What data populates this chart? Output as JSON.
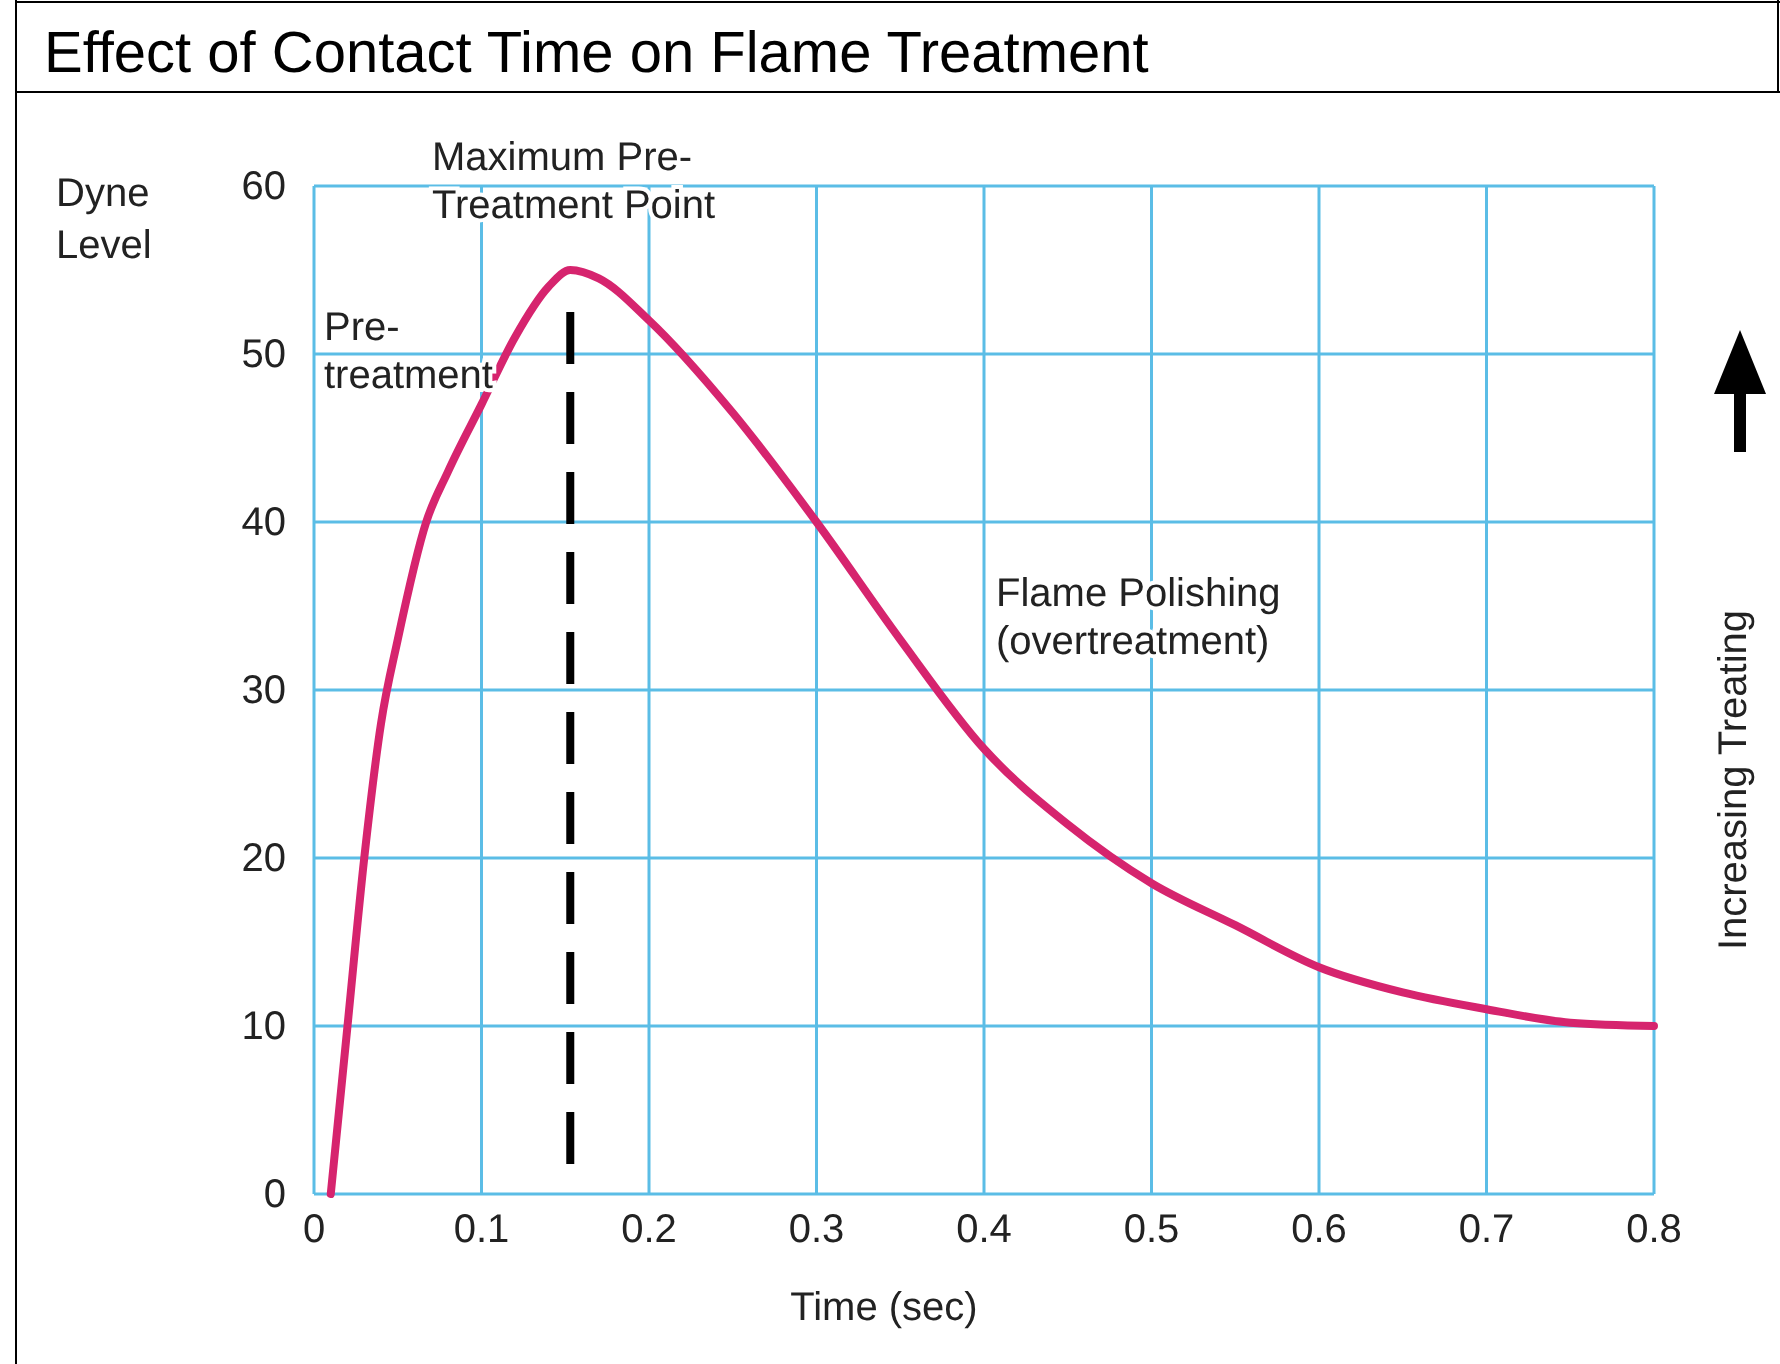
{
  "chart_data": {
    "type": "line",
    "title": "Effect of Contact Time on Flame Treatment",
    "xlabel": "Time (sec)",
    "ylabel": "Dyne Level",
    "x": [
      0.01,
      0.02,
      0.03,
      0.04,
      0.05,
      0.067,
      0.08,
      0.1,
      0.12,
      0.14,
      0.153,
      0.17,
      0.2,
      0.25,
      0.3,
      0.35,
      0.4,
      0.45,
      0.5,
      0.55,
      0.6,
      0.65,
      0.7,
      0.75,
      0.8
    ],
    "series": [
      {
        "color": "#d6246e",
        "values": [
          0,
          10,
          20,
          28,
          33,
          40,
          43,
          47,
          51,
          54,
          55,
          54.5,
          52,
          46.5,
          40,
          33,
          26.5,
          22,
          18.5,
          16,
          13.5,
          12,
          11,
          10.2,
          10
        ]
      }
    ],
    "xlim": [
      0,
      0.8
    ],
    "xticks": [
      0,
      0.1,
      0.2,
      0.3,
      0.4,
      0.5,
      0.6,
      0.7,
      0.8
    ],
    "ylim": [
      0,
      60
    ],
    "yticks": [
      0,
      10,
      20,
      30,
      40,
      50,
      60
    ],
    "grid": true,
    "marker": "none",
    "line_style": "solid",
    "ref_lines": [
      {
        "axis": "x",
        "value": 0.153,
        "label": null,
        "color": "#000000",
        "line_style": "dashed"
      }
    ],
    "annotations": [
      "Maximum Pre-Treatment Point",
      "Pre-treatment",
      "Flame Polishing (overtreatment)",
      "Increasing Treating"
    ]
  }
}
